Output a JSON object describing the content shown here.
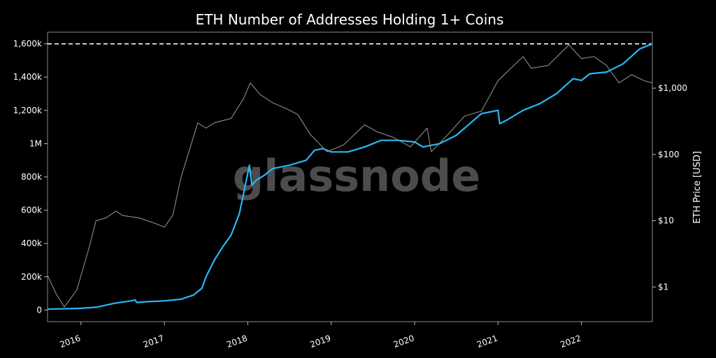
{
  "chart_data": {
    "type": "line",
    "title": "ETH Number of Addresses Holding 1+ Coins",
    "watermark": "glassnode",
    "xlabel": "",
    "ylabel_left": "",
    "ylabel_right": "ETH Price [USD]",
    "x_range": [
      2015.6,
      2022.85
    ],
    "y_left_range": [
      -70000,
      1670000
    ],
    "y_right_log_range": [
      0.3,
      7000
    ],
    "x_ticks": [
      {
        "label": "2016",
        "value": 2016
      },
      {
        "label": "2017",
        "value": 2017
      },
      {
        "label": "2018",
        "value": 2018
      },
      {
        "label": "2019",
        "value": 2019
      },
      {
        "label": "2020",
        "value": 2020
      },
      {
        "label": "2021",
        "value": 2021
      },
      {
        "label": "2022",
        "value": 2022
      }
    ],
    "y_left_ticks": [
      {
        "label": "0",
        "value": 0
      },
      {
        "label": "200k",
        "value": 200000
      },
      {
        "label": "400k",
        "value": 400000
      },
      {
        "label": "600k",
        "value": 600000
      },
      {
        "label": "800k",
        "value": 800000
      },
      {
        "label": "1M",
        "value": 1000000
      },
      {
        "label": "1,200k",
        "value": 1200000
      },
      {
        "label": "1,400k",
        "value": 1400000
      },
      {
        "label": "1,600k",
        "value": 1600000
      }
    ],
    "y_right_ticks": [
      {
        "label": "$1",
        "value": 1
      },
      {
        "label": "$10",
        "value": 10
      },
      {
        "label": "$100",
        "value": 100
      },
      {
        "label": "$1,000",
        "value": 1000
      }
    ],
    "reference_line": {
      "value": 1600000,
      "style": "dashed",
      "color": "#ffffff"
    },
    "series": [
      {
        "color": "#29b6f6",
        "axis": "left",
        "points": [
          [
            2015.6,
            5000
          ],
          [
            2016.0,
            10000
          ],
          [
            2016.2,
            18000
          ],
          [
            2016.4,
            40000
          ],
          [
            2016.6,
            55000
          ],
          [
            2016.65,
            60000
          ],
          [
            2016.67,
            45000
          ],
          [
            2016.8,
            50000
          ],
          [
            2017.0,
            55000
          ],
          [
            2017.2,
            65000
          ],
          [
            2017.35,
            90000
          ],
          [
            2017.45,
            130000
          ],
          [
            2017.5,
            200000
          ],
          [
            2017.6,
            300000
          ],
          [
            2017.7,
            380000
          ],
          [
            2017.8,
            450000
          ],
          [
            2017.9,
            580000
          ],
          [
            2017.95,
            700000
          ],
          [
            2018.02,
            870000
          ],
          [
            2018.05,
            750000
          ],
          [
            2018.1,
            780000
          ],
          [
            2018.2,
            810000
          ],
          [
            2018.3,
            850000
          ],
          [
            2018.5,
            870000
          ],
          [
            2018.7,
            900000
          ],
          [
            2018.8,
            960000
          ],
          [
            2018.9,
            970000
          ],
          [
            2019.0,
            950000
          ],
          [
            2019.2,
            950000
          ],
          [
            2019.4,
            980000
          ],
          [
            2019.6,
            1020000
          ],
          [
            2019.8,
            1020000
          ],
          [
            2020.0,
            1010000
          ],
          [
            2020.1,
            980000
          ],
          [
            2020.3,
            1000000
          ],
          [
            2020.5,
            1050000
          ],
          [
            2020.8,
            1180000
          ],
          [
            2021.0,
            1200000
          ],
          [
            2021.02,
            1120000
          ],
          [
            2021.1,
            1140000
          ],
          [
            2021.3,
            1200000
          ],
          [
            2021.5,
            1240000
          ],
          [
            2021.7,
            1300000
          ],
          [
            2021.9,
            1390000
          ],
          [
            2022.0,
            1380000
          ],
          [
            2022.1,
            1420000
          ],
          [
            2022.3,
            1430000
          ],
          [
            2022.5,
            1480000
          ],
          [
            2022.7,
            1570000
          ],
          [
            2022.85,
            1600000
          ]
        ]
      },
      {
        "color": "#8c8c8c",
        "axis": "right",
        "points": [
          [
            2015.6,
            1.5
          ],
          [
            2015.7,
            0.8
          ],
          [
            2015.8,
            0.5
          ],
          [
            2015.95,
            0.9
          ],
          [
            2016.1,
            4
          ],
          [
            2016.18,
            10
          ],
          [
            2016.3,
            11
          ],
          [
            2016.42,
            14
          ],
          [
            2016.5,
            12
          ],
          [
            2016.7,
            11
          ],
          [
            2016.9,
            9
          ],
          [
            2017.0,
            8
          ],
          [
            2017.1,
            12
          ],
          [
            2017.2,
            45
          ],
          [
            2017.4,
            300
          ],
          [
            2017.5,
            250
          ],
          [
            2017.6,
            300
          ],
          [
            2017.8,
            350
          ],
          [
            2017.95,
            700
          ],
          [
            2018.03,
            1200
          ],
          [
            2018.15,
            800
          ],
          [
            2018.3,
            600
          ],
          [
            2018.45,
            500
          ],
          [
            2018.6,
            400
          ],
          [
            2018.75,
            200
          ],
          [
            2018.95,
            110
          ],
          [
            2019.15,
            140
          ],
          [
            2019.4,
            280
          ],
          [
            2019.55,
            220
          ],
          [
            2019.75,
            180
          ],
          [
            2019.95,
            130
          ],
          [
            2020.15,
            250
          ],
          [
            2020.2,
            110
          ],
          [
            2020.4,
            200
          ],
          [
            2020.6,
            380
          ],
          [
            2020.8,
            450
          ],
          [
            2021.0,
            1300
          ],
          [
            2021.3,
            3000
          ],
          [
            2021.4,
            2000
          ],
          [
            2021.6,
            2200
          ],
          [
            2021.85,
            4500
          ],
          [
            2022.0,
            2800
          ],
          [
            2022.15,
            3000
          ],
          [
            2022.3,
            2200
          ],
          [
            2022.45,
            1200
          ],
          [
            2022.6,
            1600
          ],
          [
            2022.75,
            1300
          ],
          [
            2022.85,
            1200
          ]
        ]
      }
    ]
  }
}
